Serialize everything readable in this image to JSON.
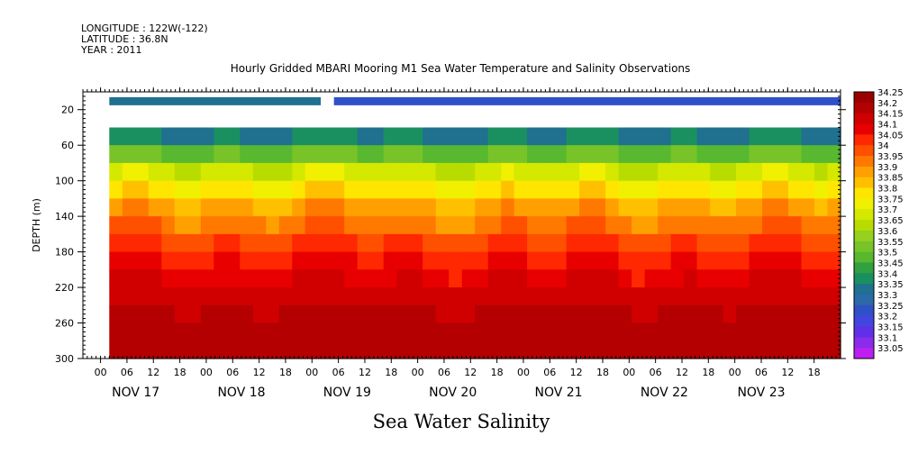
{
  "header": {
    "longitude": "LONGITUDE : 122W(-122)",
    "latitude": "LATITUDE : 36.8N",
    "year": "YEAR : 2011"
  },
  "chart_data": {
    "type": "heatmap",
    "title": "Hourly Gridded MBARI Mooring M1 Sea Water Temperature and Salinity Observations",
    "xlabel": "Sea Water Salinity",
    "ylabel": "DEPTH (m)",
    "ylim": [
      300,
      0
    ],
    "y_inverted": true,
    "y_ticks": [
      20,
      60,
      100,
      140,
      180,
      220,
      260,
      300
    ],
    "x_range": [
      "2011-11-16T18:00",
      "2011-11-23T22:00"
    ],
    "x_hour_ticks": [
      {
        "hour": "00",
        "day": 16.917
      },
      {
        "hour": "06",
        "day": 17.167
      },
      {
        "hour": "12",
        "day": 17.417
      },
      {
        "hour": "18",
        "day": 17.667
      },
      {
        "hour": "00",
        "day": 17.917
      },
      {
        "hour": "06",
        "day": 18.167
      },
      {
        "hour": "12",
        "day": 18.417
      },
      {
        "hour": "18",
        "day": 18.667
      },
      {
        "hour": "00",
        "day": 18.917
      },
      {
        "hour": "06",
        "day": 19.167
      },
      {
        "hour": "12",
        "day": 19.417
      },
      {
        "hour": "18",
        "day": 19.667
      },
      {
        "hour": "00",
        "day": 19.917
      },
      {
        "hour": "06",
        "day": 20.167
      },
      {
        "hour": "12",
        "day": 20.417
      },
      {
        "hour": "18",
        "day": 20.667
      },
      {
        "hour": "00",
        "day": 20.917
      },
      {
        "hour": "06",
        "day": 21.167
      },
      {
        "hour": "12",
        "day": 21.417
      },
      {
        "hour": "18",
        "day": 21.667
      },
      {
        "hour": "00",
        "day": 21.917
      },
      {
        "hour": "06",
        "day": 22.167
      },
      {
        "hour": "12",
        "day": 22.417
      },
      {
        "hour": "18",
        "day": 22.667
      },
      {
        "hour": "00",
        "day": 22.917
      },
      {
        "hour": "06",
        "day": 23.167
      },
      {
        "hour": "12",
        "day": 23.417
      },
      {
        "hour": "18",
        "day": 23.667
      }
    ],
    "x_date_labels": [
      {
        "label": "NOV 17",
        "day": 17.25
      },
      {
        "label": "NOV 18",
        "day": 18.25
      },
      {
        "label": "NOV 19",
        "day": 19.25
      },
      {
        "label": "NOV 20",
        "day": 20.25
      },
      {
        "label": "NOV 21",
        "day": 21.25
      },
      {
        "label": "NOV 22",
        "day": 22.25
      },
      {
        "label": "NOV 23",
        "day": 23.167
      }
    ],
    "colorbar_levels": [
      "34.25",
      "34.2",
      "34.15",
      "34.1",
      "34.05",
      "34",
      "33.95",
      "33.9",
      "33.85",
      "33.8",
      "33.75",
      "33.7",
      "33.65",
      "33.6",
      "33.55",
      "33.5",
      "33.45",
      "33.4",
      "33.35",
      "33.3",
      "33.25",
      "33.2",
      "33.15",
      "33.1",
      "33.05"
    ],
    "colorbar_colors": [
      "#9b0000",
      "#b40000",
      "#d00000",
      "#e80000",
      "#ff2800",
      "#ff5000",
      "#ff7800",
      "#ffa000",
      "#ffc000",
      "#ffe600",
      "#f0f000",
      "#d4e800",
      "#b8dc00",
      "#98d020",
      "#78c428",
      "#58b830",
      "#30a040",
      "#1a9060",
      "#207090",
      "#2a6aa8",
      "#3050c8",
      "#4444e0",
      "#6030e8",
      "#8a2cec",
      "#bb20f0"
    ],
    "surface_layer": {
      "depth": 10,
      "segments": [
        {
          "from_day": 17.0,
          "to_day": 19.0,
          "salinity": 33.35
        },
        {
          "from_day": 19.125,
          "to_day": 23.917,
          "salinity": 33.25
        }
      ]
    },
    "profile_depths": [
      40,
      60,
      80,
      100,
      120,
      140,
      160,
      180,
      200,
      220,
      240,
      260,
      280,
      300
    ],
    "profile_start_day": 17.0,
    "profile_end_day": 23.917,
    "profile_steps": 56,
    "salinity_profile_at_depth": [
      33.4,
      33.55,
      33.72,
      33.82,
      33.92,
      33.98,
      34.05,
      34.1,
      34.14,
      34.18,
      34.21,
      34.23,
      34.22,
      34.21
    ]
  }
}
